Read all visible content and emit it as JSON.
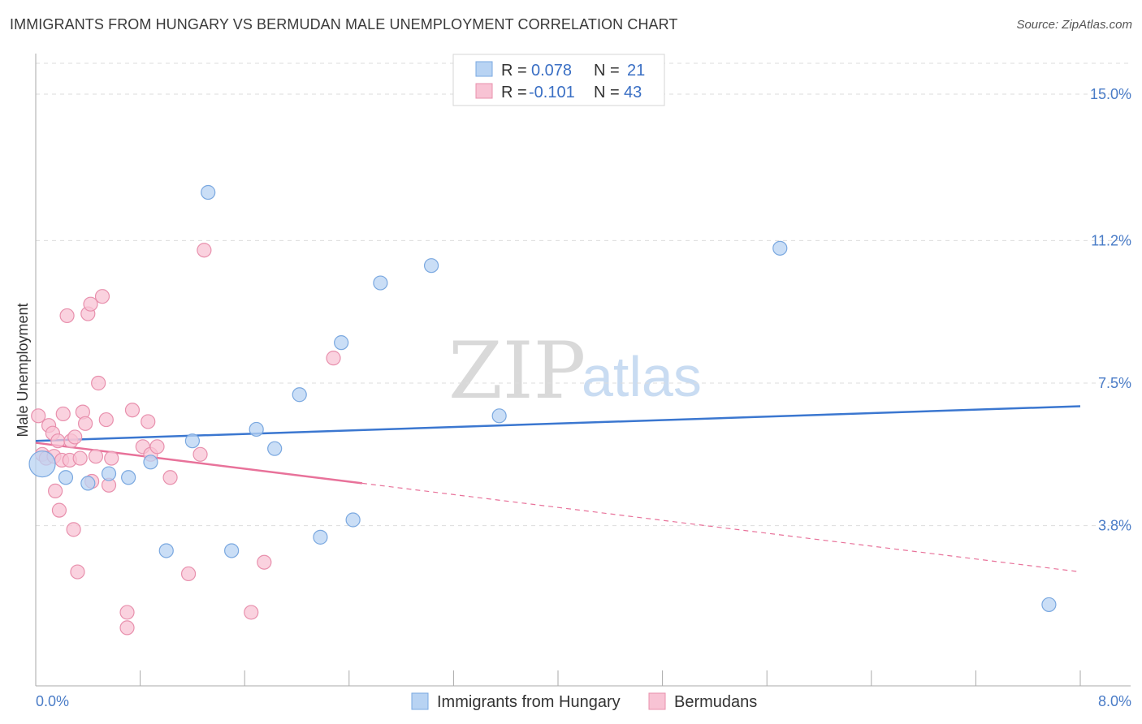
{
  "title": "IMMIGRANTS FROM HUNGARY VS BERMUDAN MALE UNEMPLOYMENT CORRELATION CHART",
  "source": "Source: ZipAtlas.com",
  "watermark": {
    "zip": "ZIP",
    "atlas": "atlas"
  },
  "legend_top": {
    "rows": [
      {
        "r_label": "R =",
        "r_value": "0.078",
        "n_label": "N =",
        "n_value": "21"
      },
      {
        "r_label": "R =",
        "r_value": "-0.101",
        "n_label": "N =",
        "n_value": "43"
      }
    ]
  },
  "legend_bottom": {
    "items": [
      "Immigrants from Hungary",
      "Bermudans"
    ]
  },
  "colors": {
    "blue_fill": "#b8d3f3",
    "blue_stroke": "#7aa8e0",
    "blue_line": "#3b77d0",
    "pink_fill": "#f8c3d4",
    "pink_stroke": "#e890ad",
    "pink_line": "#e8729a",
    "grid": "#dddddd",
    "tick_text": "#4a7cc7"
  },
  "chart_data": {
    "type": "scatter",
    "title": "IMMIGRANTS FROM HUNGARY VS BERMUDAN MALE UNEMPLOYMENT CORRELATION CHART",
    "xlabel": "",
    "ylabel": "Male Unemployment",
    "xlim": [
      0,
      8
    ],
    "ylim": [
      0,
      15.8
    ],
    "x_tick_labels": [
      "0.0%",
      "8.0%"
    ],
    "y_ticks": [
      3.8,
      7.5,
      11.2,
      15.0
    ],
    "y_tick_labels": [
      "3.8%",
      "7.5%",
      "11.2%",
      "15.0%"
    ],
    "grid": true,
    "series": [
      {
        "name": "Immigrants from Hungary",
        "color_key": "blue",
        "r": 0.078,
        "n": 21,
        "points": [
          {
            "x": 0.05,
            "y": 5.4,
            "big": true
          },
          {
            "x": 0.23,
            "y": 5.05
          },
          {
            "x": 0.4,
            "y": 4.9
          },
          {
            "x": 0.56,
            "y": 5.15
          },
          {
            "x": 0.71,
            "y": 5.05
          },
          {
            "x": 0.88,
            "y": 5.45
          },
          {
            "x": 1.0,
            "y": 3.15
          },
          {
            "x": 1.2,
            "y": 6.0
          },
          {
            "x": 1.32,
            "y": 12.45
          },
          {
            "x": 1.5,
            "y": 3.15
          },
          {
            "x": 1.69,
            "y": 6.3
          },
          {
            "x": 1.83,
            "y": 5.8
          },
          {
            "x": 2.02,
            "y": 7.2
          },
          {
            "x": 2.18,
            "y": 3.5
          },
          {
            "x": 2.34,
            "y": 8.55
          },
          {
            "x": 2.43,
            "y": 3.95
          },
          {
            "x": 2.64,
            "y": 10.1
          },
          {
            "x": 3.03,
            "y": 10.55
          },
          {
            "x": 3.55,
            "y": 6.65
          },
          {
            "x": 5.7,
            "y": 11.0
          },
          {
            "x": 7.76,
            "y": 1.75
          }
        ],
        "trend": {
          "x0": 0.0,
          "y0": 6.0,
          "x1": 8.0,
          "y1": 6.9
        }
      },
      {
        "name": "Bermudans",
        "color_key": "pink",
        "r": -0.101,
        "n": 43,
        "points": [
          {
            "x": 0.02,
            "y": 6.65
          },
          {
            "x": 0.05,
            "y": 5.65
          },
          {
            "x": 0.08,
            "y": 5.55
          },
          {
            "x": 0.1,
            "y": 6.4
          },
          {
            "x": 0.13,
            "y": 6.2
          },
          {
            "x": 0.14,
            "y": 5.6
          },
          {
            "x": 0.15,
            "y": 4.7
          },
          {
            "x": 0.17,
            "y": 6.0
          },
          {
            "x": 0.18,
            "y": 4.2
          },
          {
            "x": 0.2,
            "y": 5.5
          },
          {
            "x": 0.21,
            "y": 6.7
          },
          {
            "x": 0.24,
            "y": 9.25
          },
          {
            "x": 0.26,
            "y": 5.5
          },
          {
            "x": 0.27,
            "y": 6.0
          },
          {
            "x": 0.29,
            "y": 3.7
          },
          {
            "x": 0.3,
            "y": 6.1
          },
          {
            "x": 0.32,
            "y": 2.6
          },
          {
            "x": 0.34,
            "y": 5.55
          },
          {
            "x": 0.36,
            "y": 6.75
          },
          {
            "x": 0.38,
            "y": 6.45
          },
          {
            "x": 0.4,
            "y": 9.3
          },
          {
            "x": 0.42,
            "y": 9.55
          },
          {
            "x": 0.43,
            "y": 4.95
          },
          {
            "x": 0.46,
            "y": 5.6
          },
          {
            "x": 0.48,
            "y": 7.5
          },
          {
            "x": 0.51,
            "y": 9.75
          },
          {
            "x": 0.54,
            "y": 6.55
          },
          {
            "x": 0.56,
            "y": 4.85
          },
          {
            "x": 0.58,
            "y": 5.55
          },
          {
            "x": 0.7,
            "y": 1.55
          },
          {
            "x": 0.7,
            "y": 1.15
          },
          {
            "x": 0.74,
            "y": 6.8
          },
          {
            "x": 0.82,
            "y": 5.85
          },
          {
            "x": 0.86,
            "y": 6.5
          },
          {
            "x": 0.88,
            "y": 5.65
          },
          {
            "x": 0.93,
            "y": 5.85
          },
          {
            "x": 1.03,
            "y": 5.05
          },
          {
            "x": 1.17,
            "y": 2.55
          },
          {
            "x": 1.26,
            "y": 5.65
          },
          {
            "x": 1.29,
            "y": 10.95
          },
          {
            "x": 1.65,
            "y": 1.55
          },
          {
            "x": 1.75,
            "y": 2.85
          },
          {
            "x": 2.28,
            "y": 8.15
          }
        ],
        "trend": {
          "x0": 0.0,
          "y0": 5.95,
          "x1": 2.5,
          "y1": 4.9,
          "x2": 8.0,
          "y2": 2.6
        }
      }
    ]
  }
}
